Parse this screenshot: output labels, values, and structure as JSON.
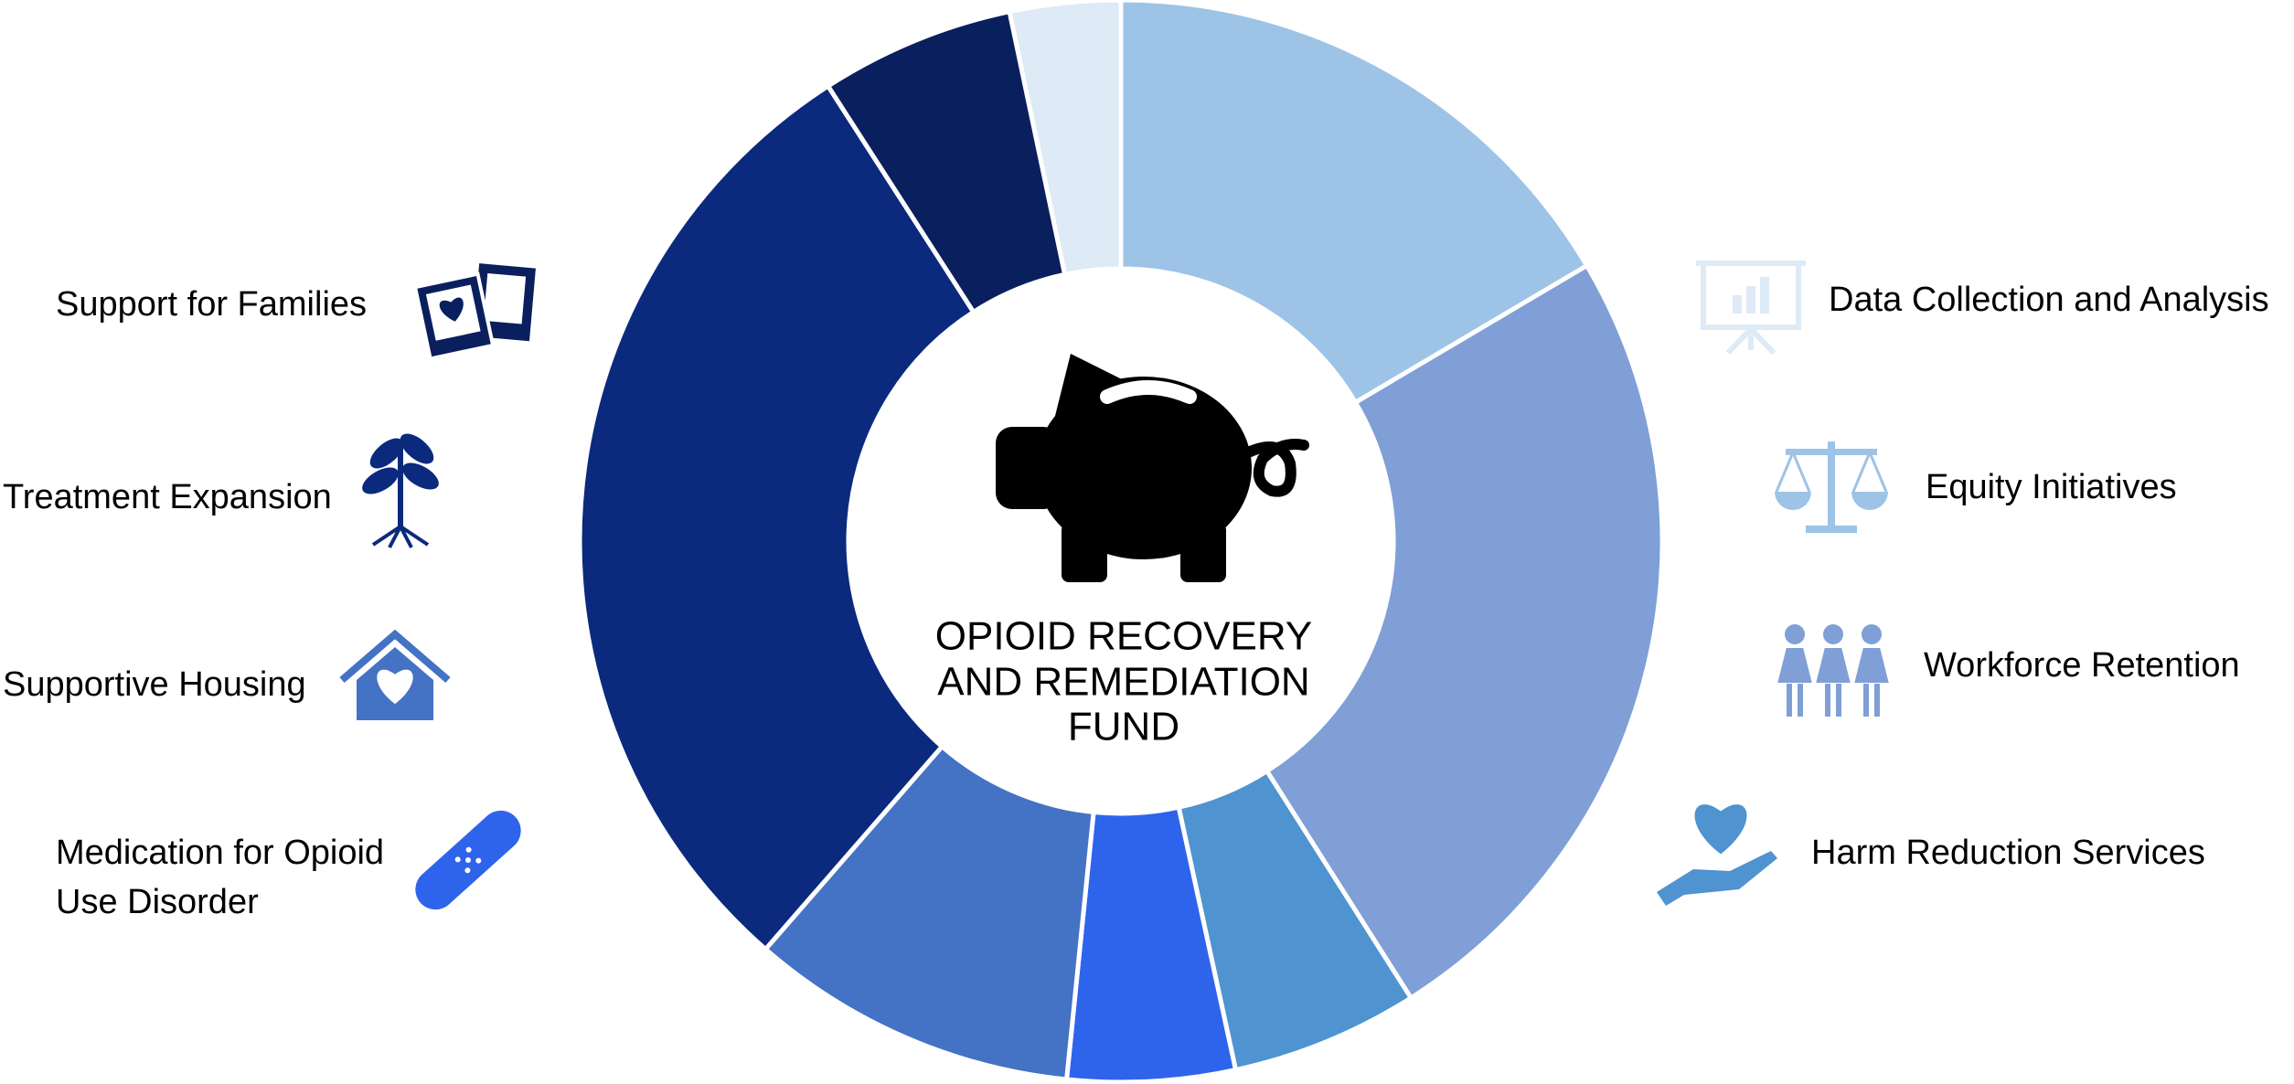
{
  "chart_data": {
    "type": "donut",
    "title_lines": [
      "OPIOID RECOVERY",
      "AND REMEDIATION",
      "FUND"
    ],
    "categories": [
      "Equity Initiatives",
      "Workforce Retention",
      "Harm Reduction Services",
      "Medication for Opioid Use Disorder",
      "Supportive Housing",
      "Treatment Expansion",
      "Support for Families",
      "Data Collection and Analysis"
    ],
    "values": [
      16.5,
      24.5,
      5.6,
      5,
      9.8,
      29.5,
      5.8,
      3.3
    ],
    "colors": [
      "#9dc3e6",
      "#7f9fd6",
      "#4f93d0",
      "#2e64ec",
      "#4472c4",
      "#0b2a7e",
      "#0a1f5e",
      "#deeaf6"
    ]
  }
}
